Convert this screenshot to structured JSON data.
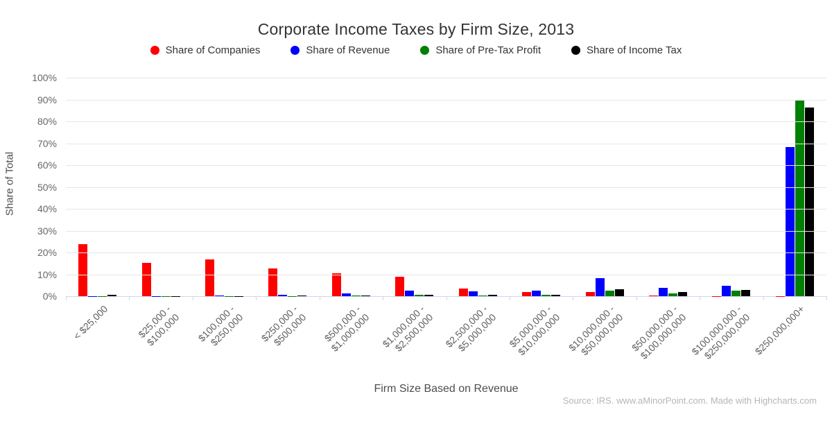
{
  "chart_data": {
    "type": "bar",
    "title": "Corporate Income Taxes by Firm Size, 2013",
    "xlabel": "Firm Size Based on Revenue",
    "ylabel": "Share of Total",
    "ylim": [
      0,
      100
    ],
    "yticks": [
      0,
      10,
      20,
      30,
      40,
      50,
      60,
      70,
      80,
      90,
      100
    ],
    "ytick_suffix": "%",
    "grid": true,
    "legend_position": "top",
    "categories": [
      "< $25,000",
      "$25,000 - $100,000",
      "$100,000 - $250,000",
      "$250,000 - $500,000",
      "$500,000 - $1,000,000",
      "$1,000,000 - $2,500,000",
      "$2,500,000 - $5,000,000",
      "$5,000,000 - $10,000,000",
      "$10,000,000 - $50,000,000",
      "$50,000,000 - $100,000,000",
      "$100,000,000 - $250,000,000",
      "$250,000,000+"
    ],
    "series": [
      {
        "name": "Share of Companies",
        "color": "#ff0000",
        "values": [
          23.7,
          15.2,
          16.8,
          12.8,
          10.6,
          8.8,
          3.6,
          1.8,
          2.0,
          0.2,
          0.1,
          0.1
        ]
      },
      {
        "name": "Share of Revenue",
        "color": "#0000ff",
        "values": [
          0.1,
          0.1,
          0.2,
          0.6,
          1.4,
          2.5,
          2.1,
          2.7,
          8.2,
          3.8,
          4.7,
          68.3
        ]
      },
      {
        "name": "Share of Pre-Tax Profit",
        "color": "#008000",
        "values": [
          0.1,
          0.1,
          0.1,
          0.1,
          0.3,
          0.5,
          0.3,
          0.5,
          2.4,
          1.3,
          2.4,
          89.4
        ]
      },
      {
        "name": "Share of Income Tax",
        "color": "#000000",
        "values": [
          0.5,
          0.1,
          0.1,
          0.2,
          0.3,
          0.5,
          0.5,
          0.6,
          3.2,
          1.8,
          2.8,
          86.2
        ]
      }
    ],
    "credit": "Source: IRS. www.aMinorPoint.com. Made with Highcharts.com"
  }
}
